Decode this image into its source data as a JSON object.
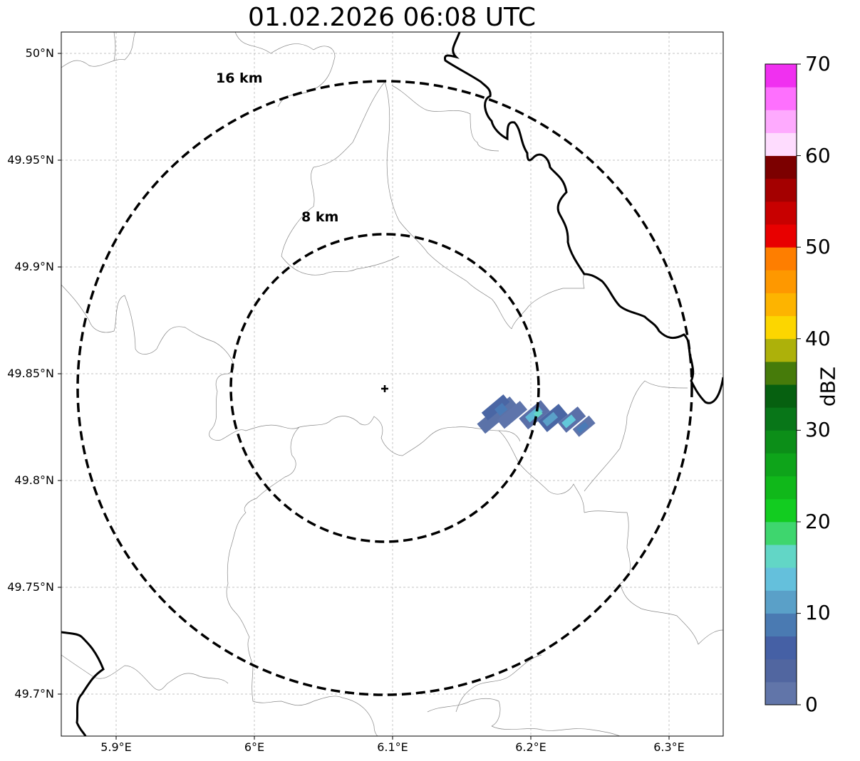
{
  "title": "01.02.2026 06:08 UTC",
  "axes": {
    "y_ticks": [
      "50°N",
      "49.95°N",
      "49.9°N",
      "49.85°N",
      "49.8°N",
      "49.75°N",
      "49.7°N"
    ],
    "x_ticks": [
      "5.9°E",
      "6°E",
      "6.1°E",
      "6.2°E",
      "6.3°E"
    ]
  },
  "range_rings": {
    "outer": "16 km",
    "inner": "8 km"
  },
  "radar_site": {
    "lon": 6.095,
    "lat": 49.843
  },
  "colorbar": {
    "label": "dBZ",
    "ticks": [
      "0",
      "10",
      "20",
      "30",
      "40",
      "50",
      "60",
      "70"
    ],
    "colors": [
      "#6175a9",
      "#5166a0",
      "#4560a5",
      "#4a7ab2",
      "#5aa0c8",
      "#64c0dc",
      "#62d6c6",
      "#3ed66e",
      "#12cc20",
      "#10b81a",
      "#0ea41a",
      "#0c8e18",
      "#087618",
      "#066010",
      "#467b0a",
      "#adb10a",
      "#fcd600",
      "#fdb400",
      "#fe9800",
      "#fe7e00",
      "#e80000",
      "#c80000",
      "#a40000",
      "#7c0000",
      "#fedcfe",
      "#feaafe",
      "#fe70fe",
      "#f030f0"
    ]
  },
  "echo_colors": {
    "low": "#5a6fa8",
    "mid": "#4a7ab6",
    "high": "#5eb8d6",
    "peak": "#62d6c6"
  }
}
